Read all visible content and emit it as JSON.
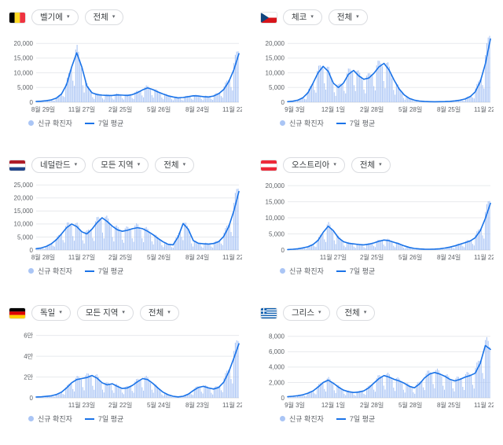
{
  "colors": {
    "bar": "#aac5f5",
    "line": "#1a73e8",
    "grid": "#e8eaed",
    "baseline": "#dadce0",
    "axis_text": "#5f6368",
    "chip_text": "#3c4043",
    "chip_border": "#dadce0",
    "legend_text": "#5f6368"
  },
  "legend": {
    "new_cases_label": "신규 확진자",
    "avg_label": "7일 평균"
  },
  "bar_pattern": [
    1.12,
    1.2,
    1.15,
    1.05,
    0.95,
    0.55,
    0.38
  ],
  "chart_data": [
    {
      "type": "bar+line",
      "country": "벨기에",
      "flag_icon": "belgium-flag",
      "controls": [
        "벨기에",
        "전체"
      ],
      "x_ticks": [
        "8월 29일",
        "11월 27일",
        "2월 25일",
        "5월 26일",
        "8월 24일",
        "11월 22일"
      ],
      "y_tick_labels": [
        "20,000",
        "15,000",
        "10,000",
        "5,000",
        "0"
      ],
      "y_tick_values": [
        20000,
        15000,
        10000,
        5000,
        0
      ],
      "ylim": [
        0,
        23000
      ],
      "series": [
        {
          "name": "신규 확진자",
          "type": "bar",
          "note": "daily bars oscillate around the 7-day average per bar_pattern"
        },
        {
          "name": "7일 평균",
          "type": "line",
          "values": [
            250,
            350,
            500,
            800,
            1400,
            2800,
            6000,
            12000,
            16800,
            12000,
            5500,
            3200,
            2600,
            2400,
            2300,
            2300,
            2500,
            2400,
            2300,
            2600,
            3300,
            4200,
            4900,
            4300,
            3500,
            2800,
            2200,
            1800,
            1500,
            1600,
            1900,
            2200,
            2100,
            1900,
            1800,
            2100,
            2900,
            4300,
            7000,
            11000,
            16500
          ]
        }
      ]
    },
    {
      "type": "bar+line",
      "country": "체코",
      "flag_icon": "czechia-flag",
      "controls": [
        "체코",
        "전체"
      ],
      "x_ticks": [
        "9월 3일",
        "12월 1일",
        "2월 28일",
        "5월 28일",
        "8월 25일",
        "11월 22일"
      ],
      "y_tick_labels": [
        "20,000",
        "15,000",
        "10,000",
        "5,000",
        "0"
      ],
      "y_tick_values": [
        20000,
        15000,
        10000,
        5000,
        0
      ],
      "ylim": [
        0,
        23000
      ],
      "series": [
        {
          "name": "신규 확진자",
          "type": "bar",
          "note": "daily bars oscillate around the 7-day average per bar_pattern"
        },
        {
          "name": "7일 평균",
          "type": "line",
          "values": [
            200,
            350,
            700,
            1500,
            3200,
            6500,
            10000,
            12200,
            10500,
            6500,
            5000,
            6500,
            9500,
            10800,
            9000,
            7800,
            8200,
            9800,
            12000,
            13200,
            11000,
            7500,
            4500,
            2500,
            1300,
            700,
            400,
            250,
            180,
            160,
            180,
            220,
            300,
            450,
            700,
            1100,
            1900,
            3500,
            7000,
            13000,
            21500
          ]
        }
      ]
    },
    {
      "type": "bar+line",
      "country": "네덜란드",
      "flag_icon": "netherlands-flag",
      "controls": [
        "네덜란드",
        "모든 지역",
        "전체"
      ],
      "x_ticks": [
        "8월 28일",
        "11월 27일",
        "2월 25일",
        "5월 26일",
        "8월 24일",
        "11월 22일"
      ],
      "y_tick_labels": [
        "25,000",
        "20,000",
        "15,000",
        "10,000",
        "5,000",
        "0"
      ],
      "y_tick_values": [
        25000,
        20000,
        15000,
        10000,
        5000,
        0
      ],
      "ylim": [
        0,
        26000
      ],
      "series": [
        {
          "name": "신규 확진자",
          "type": "bar",
          "note": "daily bars oscillate around the 7-day average per bar_pattern"
        },
        {
          "name": "7일 평균",
          "type": "line",
          "values": [
            500,
            800,
            1400,
            2400,
            4000,
            6200,
            8600,
            10000,
            9000,
            7000,
            6200,
            8000,
            10500,
            12400,
            11000,
            9200,
            7800,
            7200,
            7600,
            8200,
            8600,
            8200,
            7200,
            6000,
            4500,
            3200,
            2200,
            2000,
            5000,
            10200,
            8000,
            3600,
            2600,
            2400,
            2300,
            2500,
            3200,
            5200,
            9000,
            15000,
            22500
          ]
        }
      ]
    },
    {
      "type": "bar+line",
      "country": "오스트리아",
      "flag_icon": "austria-flag",
      "controls": [
        "오스트리아",
        "전체"
      ],
      "x_ticks": [
        "11월 27일",
        "2월 25일",
        "5월 26일",
        "8월 24일",
        "11월 22일"
      ],
      "y_tick_labels": [
        "20,000",
        "15,000",
        "10,000",
        "5,000",
        "0"
      ],
      "y_tick_values": [
        20000,
        15000,
        10000,
        5000,
        0
      ],
      "ylim": [
        0,
        21000
      ],
      "series": [
        {
          "name": "신규 확진자",
          "type": "bar",
          "note": "daily bars oscillate around the 7-day average per bar_pattern"
        },
        {
          "name": "7일 평균",
          "type": "line",
          "values": [
            150,
            250,
            400,
            650,
            1000,
            1700,
            3000,
            5500,
            7400,
            6000,
            3800,
            2600,
            2100,
            1900,
            1700,
            1600,
            1800,
            2200,
            2700,
            3100,
            2900,
            2400,
            1900,
            1300,
            800,
            500,
            350,
            280,
            250,
            300,
            400,
            600,
            900,
            1300,
            1800,
            2300,
            2800,
            3800,
            6000,
            9800,
            14500
          ]
        }
      ]
    },
    {
      "type": "bar+line",
      "country": "독일",
      "flag_icon": "germany-flag",
      "controls": [
        "독일",
        "모든 지역",
        "전체"
      ],
      "x_ticks": [
        "11월 23일",
        "2월 22일",
        "5월 24일",
        "8월 23일",
        "11월 22일"
      ],
      "y_tick_labels": [
        "6만",
        "4만",
        "2만",
        "0"
      ],
      "y_tick_values": [
        60000,
        40000,
        20000,
        0
      ],
      "ylim": [
        0,
        65000
      ],
      "series": [
        {
          "name": "신규 확진자",
          "type": "bar",
          "note": "daily bars oscillate around the 7-day average per bar_pattern"
        },
        {
          "name": "7일 평균",
          "type": "line",
          "values": [
            800,
            1000,
            1400,
            2000,
            3200,
            5500,
            9500,
            14500,
            17500,
            18500,
            19500,
            21500,
            19000,
            14500,
            12500,
            13500,
            11000,
            9000,
            9500,
            12000,
            15500,
            18500,
            17500,
            14000,
            9500,
            5500,
            3000,
            1500,
            900,
            1500,
            3500,
            7000,
            10000,
            11000,
            9500,
            8500,
            10000,
            15000,
            25000,
            38000,
            52000
          ]
        }
      ]
    },
    {
      "type": "bar+line",
      "country": "그리스",
      "flag_icon": "greece-flag",
      "controls": [
        "그리스",
        "전체"
      ],
      "x_ticks": [
        "9월 3일",
        "12월 1일",
        "2월 28일",
        "5월 28일",
        "8월 25일",
        "11월 22일"
      ],
      "y_tick_labels": [
        "8,000",
        "6,000",
        "4,000",
        "2,000",
        "0"
      ],
      "y_tick_values": [
        8000,
        6000,
        4000,
        2000,
        0
      ],
      "ylim": [
        0,
        8800
      ],
      "series": [
        {
          "name": "신규 확진자",
          "type": "bar",
          "note": "daily bars oscillate around the 7-day average per bar_pattern"
        },
        {
          "name": "7일 평균",
          "type": "line",
          "values": [
            150,
            200,
            280,
            400,
            600,
            900,
            1400,
            2000,
            2300,
            1900,
            1400,
            1000,
            800,
            700,
            750,
            900,
            1300,
            1900,
            2500,
            2900,
            2700,
            2400,
            2200,
            1900,
            1500,
            1300,
            1800,
            2600,
            3100,
            3300,
            3100,
            2800,
            2400,
            2200,
            2400,
            2700,
            2900,
            3200,
            4500,
            6800,
            6300
          ]
        }
      ]
    }
  ]
}
